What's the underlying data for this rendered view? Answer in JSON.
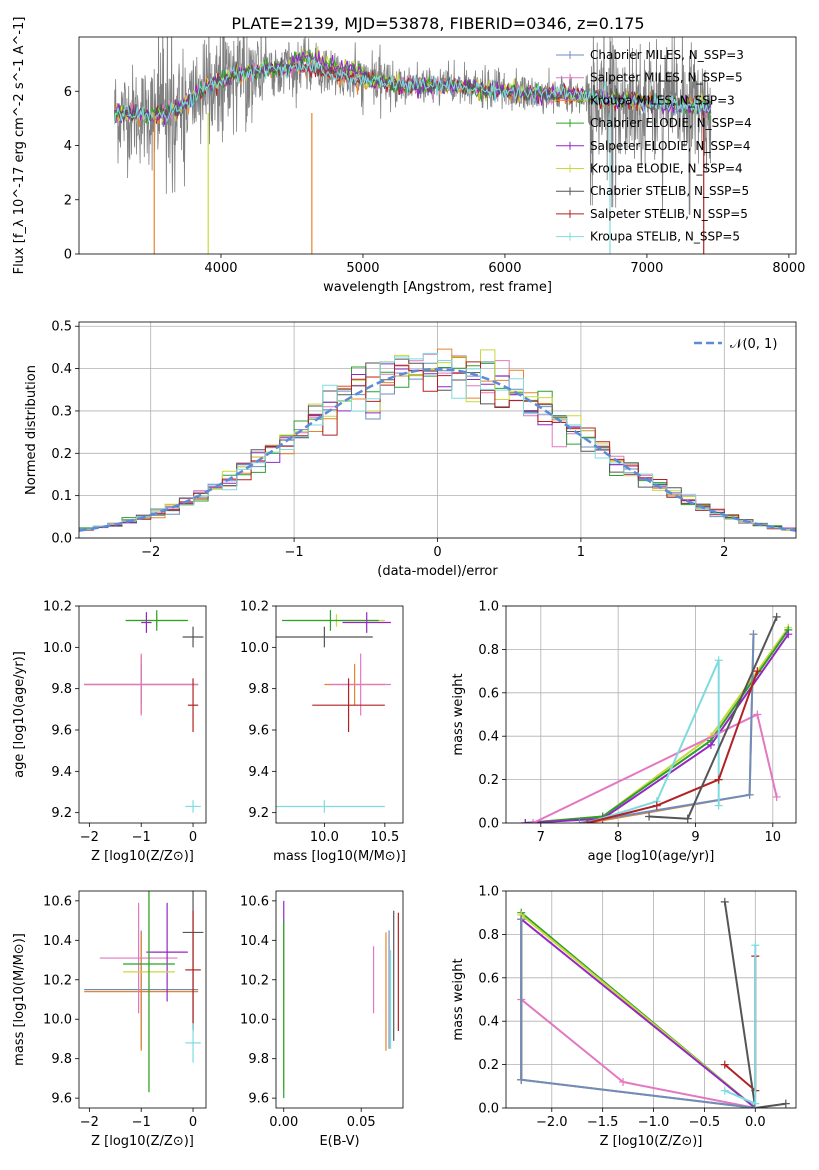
{
  "figure_title": "PLATE=2139, MJD=53878, FIBERID=0346, z=0.175",
  "series_colors": {
    "chabrier_miles": "#6c8ebf",
    "salpeter_miles": "#e377c2",
    "kroupa_miles": "#e7842c",
    "chabrier_elodie": "#2ca02c",
    "salpeter_elodie": "#9427c4",
    "kroupa_elodie": "#c9d93b",
    "chabrier_stelib": "#555555",
    "salpeter_stelib": "#b22222",
    "kroupa_stelib": "#7fdbe0"
  },
  "chart_data": [
    {
      "id": "spectrum",
      "type": "line",
      "xlabel": "wavelength [Angstrom, rest frame]",
      "ylabel": "Flux [f_λ 10^-17 erg cm^-2 s^-1 A^-1]",
      "xlim": [
        3000,
        8050
      ],
      "ylim": [
        0,
        8
      ],
      "xticks": [
        4000,
        5000,
        6000,
        7000,
        8000
      ],
      "yticks": [
        0,
        2,
        4,
        6
      ],
      "grid": false,
      "legend_position": "top-right",
      "legend": [
        {
          "key": "chabrier_miles",
          "label": "Chabrier MILES, N_SSP=3"
        },
        {
          "key": "salpeter_miles",
          "label": "Salpeter MILES, N_SSP=5"
        },
        {
          "key": "kroupa_miles",
          "label": "Kroupa MILES, N_SSP=3"
        },
        {
          "key": "chabrier_elodie",
          "label": "Chabrier ELODIE, N_SSP=4"
        },
        {
          "key": "salpeter_elodie",
          "label": "Salpeter ELODIE, N_SSP=4"
        },
        {
          "key": "kroupa_elodie",
          "label": "Kroupa ELODIE, N_SSP=4"
        },
        {
          "key": "chabrier_stelib",
          "label": "Chabrier STELIB, N_SSP=5"
        },
        {
          "key": "salpeter_stelib",
          "label": "Salpeter STELIB, N_SSP=5"
        },
        {
          "key": "kroupa_stelib",
          "label": "Kroupa STELIB, N_SSP=5"
        }
      ],
      "model_continuum": {
        "x": [
          3250,
          3500,
          3700,
          3900,
          4100,
          4300,
          4600,
          4800,
          5000,
          5200,
          5400,
          5600,
          5800,
          6000,
          6200,
          6400,
          6600,
          6800,
          7000,
          7200,
          7400
        ],
        "y": [
          5.2,
          5.1,
          5.3,
          6.2,
          6.6,
          6.8,
          6.9,
          6.6,
          6.4,
          6.3,
          6.2,
          6.2,
          6.1,
          6.0,
          5.9,
          5.9,
          5.8,
          5.7,
          5.6,
          5.5,
          5.4
        ]
      }
    },
    {
      "id": "residuals",
      "type": "line",
      "xlabel": "(data-model)/error",
      "ylabel": "Normed distribution",
      "xlim": [
        -2.5,
        2.5
      ],
      "ylim": [
        0,
        0.51
      ],
      "xticks": [
        -2,
        -1,
        0,
        1,
        2
      ],
      "yticks": [
        0.0,
        0.1,
        0.2,
        0.3,
        0.4,
        0.5
      ],
      "grid": true,
      "legend_position": "top-right",
      "legend": [
        {
          "label": "𝒩(0, 1)"
        }
      ],
      "normal_curve": {
        "mean": 0,
        "sigma": 1
      }
    },
    {
      "id": "age_vs_Z",
      "type": "scatter",
      "xlabel": "Z [log10(Z/Z⊙)]",
      "ylabel": "age [log10(age/yr)]",
      "xlim": [
        -2.2,
        0.25
      ],
      "ylim": [
        9.15,
        10.2
      ],
      "xticks": [
        -2,
        -1,
        0
      ],
      "yticks": [
        9.2,
        9.4,
        9.6,
        9.8,
        10.0,
        10.2
      ],
      "grid": false,
      "points": [
        {
          "key": "kroupa_miles",
          "x": -1.0,
          "y": 9.82,
          "xerr": 1.1,
          "yerr": 0.14
        },
        {
          "key": "chabrier_miles",
          "x": -1.0,
          "y": 9.82,
          "xerr": 1.1,
          "yerr": 0.1
        },
        {
          "key": "salpeter_miles",
          "x": -1.0,
          "y": 9.82,
          "xerr": 1.1,
          "yerr": 0.15
        },
        {
          "key": "kroupa_elodie",
          "x": -0.7,
          "y": 10.13,
          "xerr": 0.6,
          "yerr": 0.03
        },
        {
          "key": "chabrier_elodie",
          "x": -0.7,
          "y": 10.13,
          "xerr": 0.6,
          "yerr": 0.05
        },
        {
          "key": "salpeter_elodie",
          "x": -0.9,
          "y": 10.12,
          "xerr": 0.1,
          "yerr": 0.05
        },
        {
          "key": "chabrier_stelib",
          "x": 0.0,
          "y": 10.05,
          "xerr": 0.2,
          "yerr": 0.05
        },
        {
          "key": "salpeter_stelib",
          "x": 0.0,
          "y": 9.72,
          "xerr": 0.1,
          "yerr": 0.13
        },
        {
          "key": "kroupa_stelib",
          "x": 0.0,
          "y": 9.23,
          "xerr": 0.15,
          "yerr": 0.03
        }
      ]
    },
    {
      "id": "age_vs_mass",
      "type": "scatter",
      "xlabel": "mass [log10(M/M⊙)]",
      "ylabel": "",
      "xlim": [
        9.6,
        10.65
      ],
      "ylim": [
        9.15,
        10.2
      ],
      "xticks": [
        10.0,
        10.5
      ],
      "yticks": [
        9.2,
        9.4,
        9.6,
        9.8,
        10.0,
        10.2
      ],
      "grid": false,
      "points": [
        {
          "key": "kroupa_miles",
          "x": 10.25,
          "y": 9.82,
          "xerr": 0.25,
          "yerr": 0.1
        },
        {
          "key": "salpeter_miles",
          "x": 10.3,
          "y": 9.82,
          "xerr": 0.25,
          "yerr": 0.15
        },
        {
          "key": "kroupa_elodie",
          "x": 10.1,
          "y": 10.13,
          "xerr": 0.4,
          "yerr": 0.03
        },
        {
          "key": "chabrier_elodie",
          "x": 10.05,
          "y": 10.13,
          "xerr": 0.4,
          "yerr": 0.05
        },
        {
          "key": "salpeter_elodie",
          "x": 10.35,
          "y": 10.12,
          "xerr": 0.2,
          "yerr": 0.05
        },
        {
          "key": "chabrier_stelib",
          "x": 10.0,
          "y": 10.05,
          "xerr": 0.4,
          "yerr": 0.05
        },
        {
          "key": "salpeter_stelib",
          "x": 10.2,
          "y": 9.72,
          "xerr": 0.3,
          "yerr": 0.13
        },
        {
          "key": "kroupa_stelib",
          "x": 10.0,
          "y": 9.23,
          "xerr": 0.5,
          "yerr": 0.03
        }
      ]
    },
    {
      "id": "mass_weight_vs_age",
      "type": "line",
      "xlabel": "age [log10(age/yr)]",
      "ylabel": "mass weight",
      "xlim": [
        6.55,
        10.3
      ],
      "ylim": [
        0,
        1.0
      ],
      "xticks": [
        7,
        8,
        9,
        10
      ],
      "yticks": [
        0.0,
        0.2,
        0.4,
        0.6,
        0.8,
        1.0
      ],
      "grid": true,
      "series": [
        {
          "key": "kroupa_elodie",
          "x": [
            6.8,
            7.8,
            9.2,
            10.2
          ],
          "y": [
            0.0,
            0.03,
            0.4,
            0.9
          ]
        },
        {
          "key": "chabrier_elodie",
          "x": [
            6.8,
            7.8,
            9.2,
            10.2
          ],
          "y": [
            0.0,
            0.03,
            0.38,
            0.89
          ]
        },
        {
          "key": "salpeter_elodie",
          "x": [
            6.8,
            7.8,
            9.2,
            10.2
          ],
          "y": [
            0.0,
            0.02,
            0.36,
            0.87
          ]
        },
        {
          "key": "salpeter_miles",
          "x": [
            6.9,
            9.8,
            10.05
          ],
          "y": [
            0.0,
            0.5,
            0.12
          ]
        },
        {
          "key": "kroupa_miles",
          "x": [
            7.6,
            9.7,
            9.75
          ],
          "y": [
            0.0,
            0.13,
            0.87
          ]
        },
        {
          "key": "chabrier_miles",
          "x": [
            7.5,
            9.7,
            9.75
          ],
          "y": [
            0.0,
            0.13,
            0.87
          ]
        },
        {
          "key": "kroupa_stelib",
          "x": [
            7.6,
            8.5,
            9.3,
            9.3
          ],
          "y": [
            0.0,
            0.1,
            0.75,
            0.08
          ]
        },
        {
          "key": "salpeter_stelib",
          "x": [
            7.6,
            8.5,
            9.3,
            9.8
          ],
          "y": [
            0.0,
            0.08,
            0.2,
            0.7
          ]
        },
        {
          "key": "chabrier_stelib",
          "x": [
            8.4,
            8.9,
            10.05
          ],
          "y": [
            0.03,
            0.02,
            0.95
          ]
        }
      ]
    },
    {
      "id": "mass_vs_Z",
      "type": "scatter",
      "xlabel": "Z [log10(Z/Z⊙)]",
      "ylabel": "mass [log10(M/M⊙)]",
      "xlim": [
        -2.2,
        0.25
      ],
      "ylim": [
        9.55,
        10.65
      ],
      "xticks": [
        -2,
        -1,
        0
      ],
      "yticks": [
        9.6,
        9.8,
        10.0,
        10.2,
        10.4,
        10.6
      ],
      "grid": false,
      "points": [
        {
          "key": "chabrier_miles",
          "x": -1.0,
          "y": 10.15,
          "xerr": 1.1,
          "yerr": 0.3
        },
        {
          "key": "kroupa_miles",
          "x": -1.0,
          "y": 10.14,
          "xerr": 1.1,
          "yerr": 0.3
        },
        {
          "key": "salpeter_miles",
          "x": -1.05,
          "y": 10.31,
          "xerr": 0.75,
          "yerr": 0.28
        },
        {
          "key": "salpeter_elodie",
          "x": -0.5,
          "y": 10.34,
          "xerr": 0.4,
          "yerr": 0.25
        },
        {
          "key": "kroupa_elodie",
          "x": -0.85,
          "y": 10.24,
          "xerr": 0.5,
          "yerr": 0.6
        },
        {
          "key": "chabrier_elodie",
          "x": -0.85,
          "y": 10.28,
          "xerr": 0.5,
          "yerr": 0.65
        },
        {
          "key": "chabrier_stelib",
          "x": 0.0,
          "y": 10.44,
          "xerr": 0.2,
          "yerr": 0.5
        },
        {
          "key": "salpeter_stelib",
          "x": 0.0,
          "y": 10.25,
          "xerr": 0.15,
          "yerr": 0.3
        },
        {
          "key": "kroupa_stelib",
          "x": 0.0,
          "y": 9.88,
          "xerr": 0.15,
          "yerr": 0.1
        }
      ]
    },
    {
      "id": "mass_vs_ebv",
      "type": "scatter",
      "xlabel": "E(B-V)",
      "ylabel": "",
      "xlim": [
        -0.005,
        0.077
      ],
      "ylim": [
        9.55,
        10.65
      ],
      "xticks": [
        0.0,
        0.05
      ],
      "yticks": [
        9.6,
        9.8,
        10.0,
        10.2,
        10.4,
        10.6
      ],
      "grid": false,
      "points": [
        {
          "key": "salpeter_elodie",
          "x": 0.0,
          "y": 10.35,
          "xerr": 0,
          "yerr": 0.25
        },
        {
          "key": "kroupa_elodie",
          "x": 0.0,
          "y": 10.06,
          "xerr": 0,
          "yerr": 0.42
        },
        {
          "key": "chabrier_elodie",
          "x": 0.0,
          "y": 10.05,
          "xerr": 0,
          "yerr": 0.45
        },
        {
          "key": "salpeter_miles",
          "x": 0.058,
          "y": 10.2,
          "xerr": 0,
          "yerr": 0.17
        },
        {
          "key": "kroupa_miles",
          "x": 0.066,
          "y": 10.14,
          "xerr": 0,
          "yerr": 0.3
        },
        {
          "key": "chabrier_miles",
          "x": 0.068,
          "y": 10.15,
          "xerr": 0,
          "yerr": 0.3
        },
        {
          "key": "kroupa_stelib",
          "x": 0.069,
          "y": 10.1,
          "xerr": 0,
          "yerr": 0.25
        },
        {
          "key": "chabrier_stelib",
          "x": 0.071,
          "y": 10.22,
          "xerr": 0,
          "yerr": 0.33
        },
        {
          "key": "salpeter_stelib",
          "x": 0.074,
          "y": 10.24,
          "xerr": 0,
          "yerr": 0.3
        }
      ]
    },
    {
      "id": "mass_weight_vs_Z",
      "type": "line",
      "xlabel": "Z [log10(Z/Z⊙)]",
      "ylabel": "mass weight",
      "xlim": [
        -2.45,
        0.4
      ],
      "ylim": [
        0,
        1.0
      ],
      "xticks": [
        -2.0,
        -1.5,
        -1.0,
        -0.5,
        0.0
      ],
      "yticks": [
        0.0,
        0.2,
        0.4,
        0.6,
        0.8,
        1.0
      ],
      "grid": true,
      "series": [
        {
          "key": "chabrier_elodie",
          "x": [
            -2.3,
            -2.3,
            0.0
          ],
          "y": [
            0.13,
            0.9,
            0.0
          ]
        },
        {
          "key": "kroupa_elodie",
          "x": [
            -2.3,
            -2.3,
            0.0
          ],
          "y": [
            0.13,
            0.89,
            0.0
          ]
        },
        {
          "key": "salpeter_elodie",
          "x": [
            -2.3,
            -2.3,
            0.0
          ],
          "y": [
            0.13,
            0.87,
            0.0
          ]
        },
        {
          "key": "salpeter_miles",
          "x": [
            -2.3,
            -1.3,
            0.0
          ],
          "y": [
            0.5,
            0.12,
            0.0
          ]
        },
        {
          "key": "kroupa_miles",
          "x": [
            -2.3,
            -2.3,
            0.0
          ],
          "y": [
            0.87,
            0.13,
            0.0
          ]
        },
        {
          "key": "chabrier_miles",
          "x": [
            -2.3,
            -2.3,
            0.0
          ],
          "y": [
            0.87,
            0.13,
            0.0
          ]
        },
        {
          "key": "salpeter_stelib",
          "x": [
            -0.3,
            0.0,
            0.0
          ],
          "y": [
            0.2,
            0.08,
            0.7
          ]
        },
        {
          "key": "chabrier_stelib",
          "x": [
            -0.3,
            0.0,
            0.3
          ],
          "y": [
            0.95,
            0.0,
            0.02
          ]
        },
        {
          "key": "kroupa_stelib",
          "x": [
            -0.3,
            0.0,
            0.0
          ],
          "y": [
            0.08,
            0.02,
            0.75
          ]
        }
      ]
    }
  ]
}
